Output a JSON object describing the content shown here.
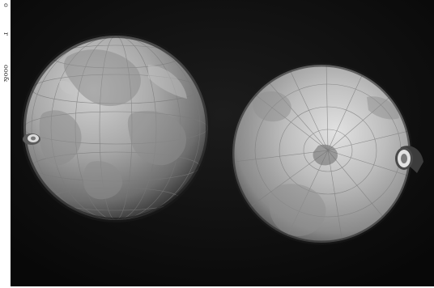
{
  "margin": {
    "fragment_1": "o",
    "fragment_2": "r",
    "fragment_3": "ooo&"
  },
  "photo": {
    "subjects": [
      "left-globe",
      "right-globe"
    ],
    "tone": "black-and-white",
    "background_color": "#0e0e0e",
    "globe_color": "#a9a9a9"
  }
}
